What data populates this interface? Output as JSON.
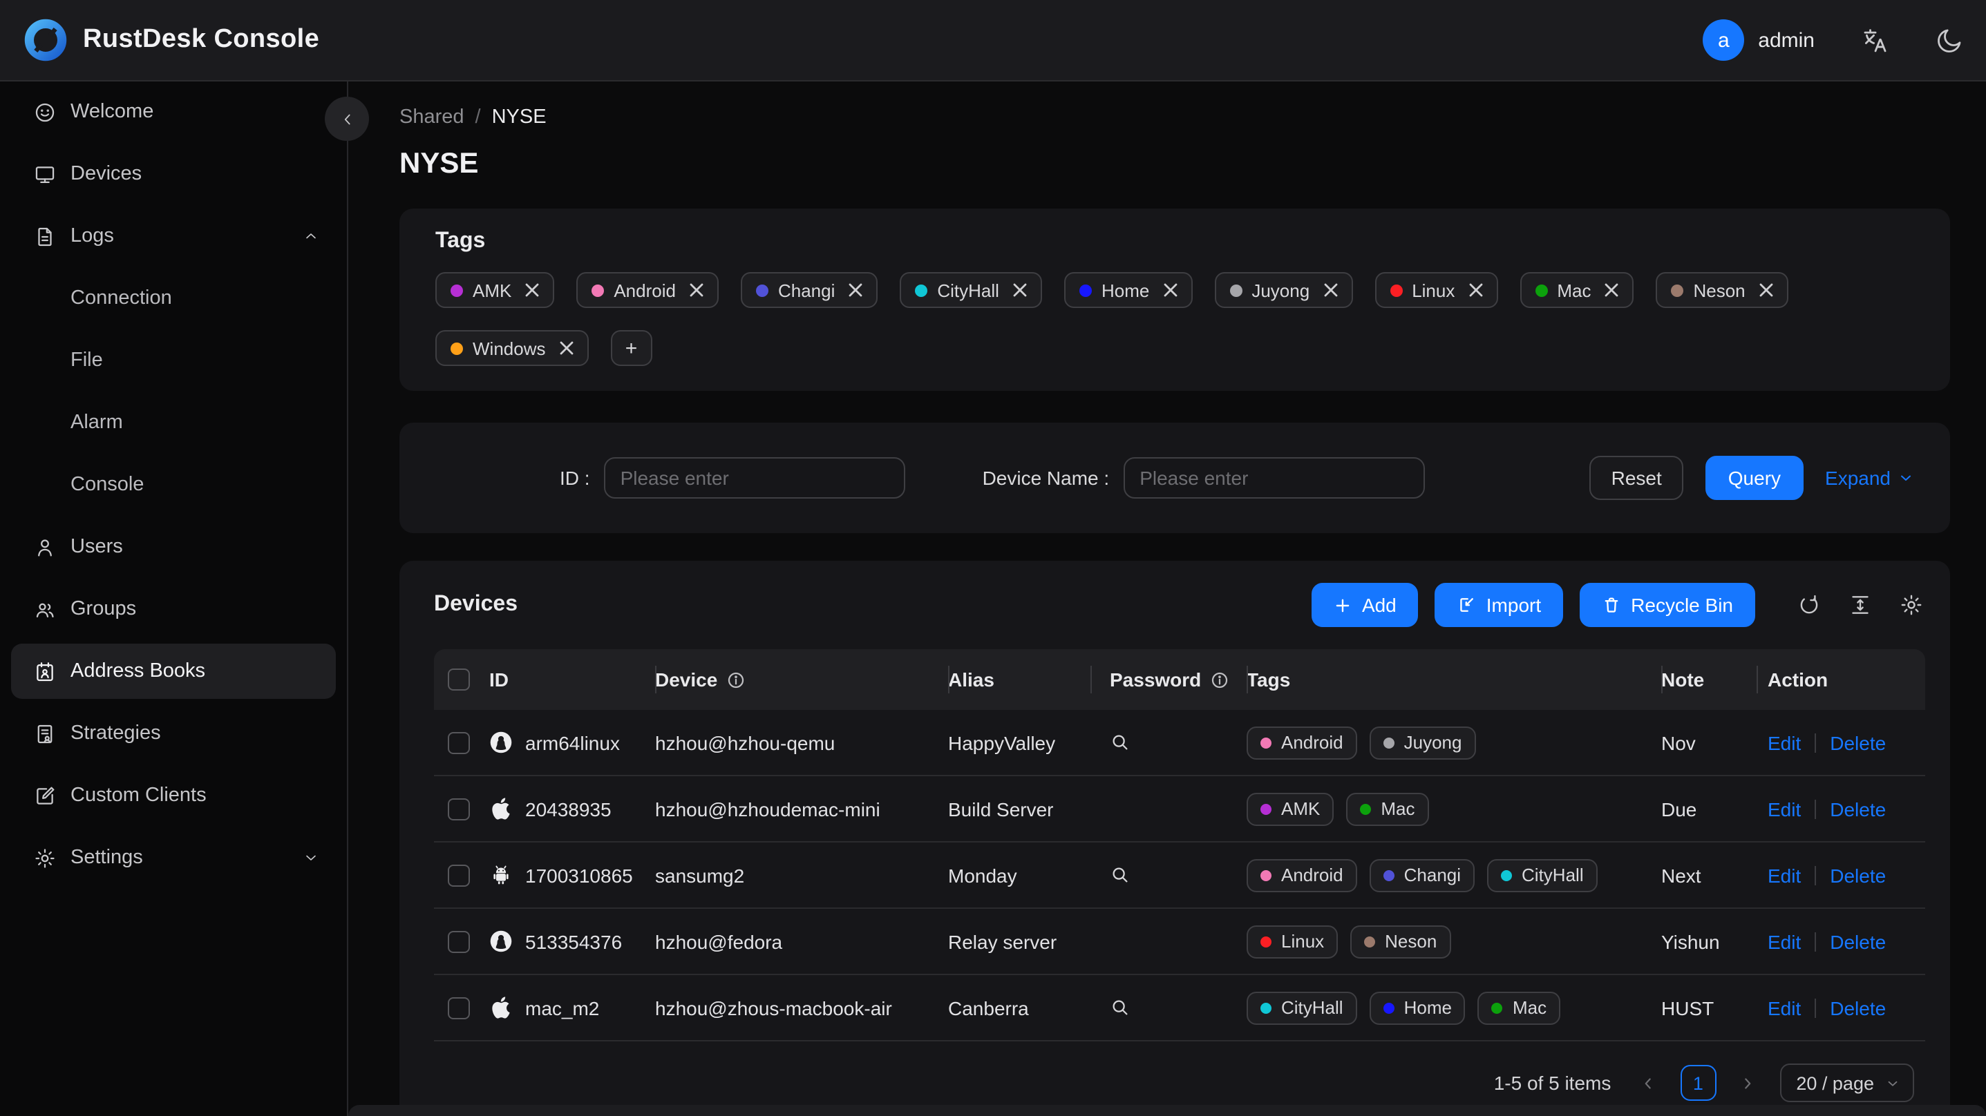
{
  "header": {
    "title": "RustDesk Console",
    "user_initial": "a",
    "user_name": "admin"
  },
  "sidebar": {
    "welcome": "Welcome",
    "devices": "Devices",
    "logs": "Logs",
    "connection": "Connection",
    "file": "File",
    "alarm": "Alarm",
    "console": "Console",
    "users": "Users",
    "groups": "Groups",
    "address_books": "Address Books",
    "strategies": "Strategies",
    "custom_clients": "Custom Clients",
    "settings": "Settings"
  },
  "breadcrumb": {
    "parent": "Shared",
    "separator": "/",
    "current": "NYSE"
  },
  "page_title": "NYSE",
  "tags_card": {
    "title": "Tags",
    "add_button": "+",
    "tags": [
      {
        "label": "AMK",
        "color": "#b62fd4"
      },
      {
        "label": "Android",
        "color": "#f279b5"
      },
      {
        "label": "Changi",
        "color": "#5152d8"
      },
      {
        "label": "CityHall",
        "color": "#10c7d6"
      },
      {
        "label": "Home",
        "color": "#1717ff"
      },
      {
        "label": "Juyong",
        "color": "#a6a6aa"
      },
      {
        "label": "Linux",
        "color": "#fb1f24"
      },
      {
        "label": "Mac",
        "color": "#0ca10c"
      },
      {
        "label": "Neson",
        "color": "#9b7a6c"
      },
      {
        "label": "Windows",
        "color": "#ffa018"
      }
    ]
  },
  "filter": {
    "id_label": "ID :",
    "id_placeholder": "Please enter",
    "device_label": "Device Name :",
    "device_placeholder": "Please enter",
    "reset": "Reset",
    "query": "Query",
    "expand": "Expand"
  },
  "devices": {
    "title": "Devices",
    "add": "Add",
    "import": "Import",
    "recycle_bin": "Recycle Bin",
    "columns": {
      "id": "ID",
      "device": "Device",
      "alias": "Alias",
      "password": "Password",
      "tags": "Tags",
      "note": "Note",
      "action": "Action"
    },
    "edit": "Edit",
    "delete": "Delete",
    "rows": [
      {
        "os": "linux",
        "id": "arm64linux",
        "device": "hzhou@hzhou-qemu",
        "alias": "HappyValley",
        "has_password": true,
        "tags": [
          "Android",
          "Juyong"
        ],
        "note": "Nov"
      },
      {
        "os": "apple",
        "id": "20438935",
        "device": "hzhou@hzhoudemac-mini",
        "alias": "Build Server",
        "has_password": false,
        "tags": [
          "AMK",
          "Mac"
        ],
        "note": "Due"
      },
      {
        "os": "android",
        "id": "1700310865",
        "device": "sansumg2",
        "alias": "Monday",
        "has_password": true,
        "tags": [
          "Android",
          "Changi",
          "CityHall"
        ],
        "note": "Next"
      },
      {
        "os": "linux",
        "id": "513354376",
        "device": "hzhou@fedora",
        "alias": "Relay server",
        "has_password": false,
        "tags": [
          "Linux",
          "Neson"
        ],
        "note": "Yishun"
      },
      {
        "os": "apple",
        "id": "mac_m2",
        "device": "hzhou@zhous-macbook-air",
        "alias": "Canberra",
        "has_password": true,
        "tags": [
          "CityHall",
          "Home",
          "Mac"
        ],
        "note": "HUST"
      }
    ]
  },
  "pagination": {
    "summary": "1-5 of 5 items",
    "page": "1",
    "page_size": "20 / page"
  },
  "colors": {
    "accent": "#1677ff"
  }
}
